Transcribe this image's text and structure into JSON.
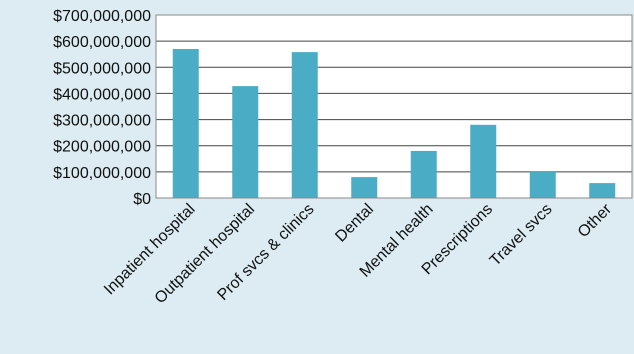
{
  "chart_data": {
    "type": "bar",
    "title": "",
    "xlabel": "",
    "ylabel": "",
    "categories": [
      "Inpatient hospital",
      "Outpatient hospital",
      "Prof svcs & clinics",
      "Dental",
      "Mental health",
      "Prescriptions",
      "Travel svcs",
      "Other"
    ],
    "values": [
      570000000,
      428000000,
      558000000,
      80000000,
      180000000,
      280000000,
      100000000,
      57000000
    ],
    "ylim": [
      0,
      700000000
    ],
    "yticks": [
      0,
      100000000,
      200000000,
      300000000,
      400000000,
      500000000,
      600000000,
      700000000
    ],
    "ytick_labels": [
      "$0",
      "$100,000,000",
      "$200,000,000",
      "$300,000,000",
      "$400,000,000",
      "$500,000,000",
      "$600,000,000",
      "$700,000,000"
    ],
    "grid": true,
    "legend": "none",
    "colors": {
      "bar": "#4bacc6",
      "plot_background": "#ffffff",
      "page_background": "#dcecf2",
      "gridline": "#444444",
      "plot_border": "#8a8a8a"
    }
  }
}
